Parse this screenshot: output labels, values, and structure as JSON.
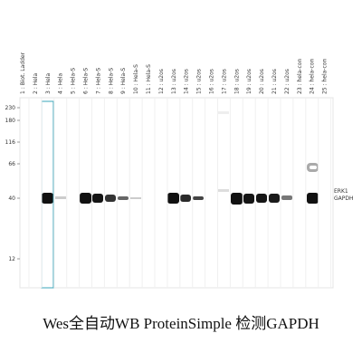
{
  "lanes": [
    "1 : Biot. Ladder",
    "2 : Hela",
    "3 : Hela",
    "4 : Hela",
    "5 : Hela-S",
    "6 : Hela-S",
    "7 : Hela-S",
    "8 : Hela-S",
    "9 : Hela-S",
    "10 : Hela-S",
    "11 : Hela-S",
    "12 : u2os",
    "13 : u2os",
    "14 : u2os",
    "15 : u2os",
    "16 : u2os",
    "17 : u2os",
    "18 : u2os",
    "19 : u2os",
    "20 : u2os",
    "21 : u2os",
    "22 : u2os",
    "23 : hela-con",
    "24 : hela-con",
    "25 : hela-con"
  ],
  "mw_markers": [
    "230",
    "180",
    "116",
    "66",
    "40",
    "12"
  ],
  "band_labels": [
    "ERK1",
    "GAPDH"
  ],
  "caption": "Wes全自动WB ProteinSimple 检测GAPDH"
}
